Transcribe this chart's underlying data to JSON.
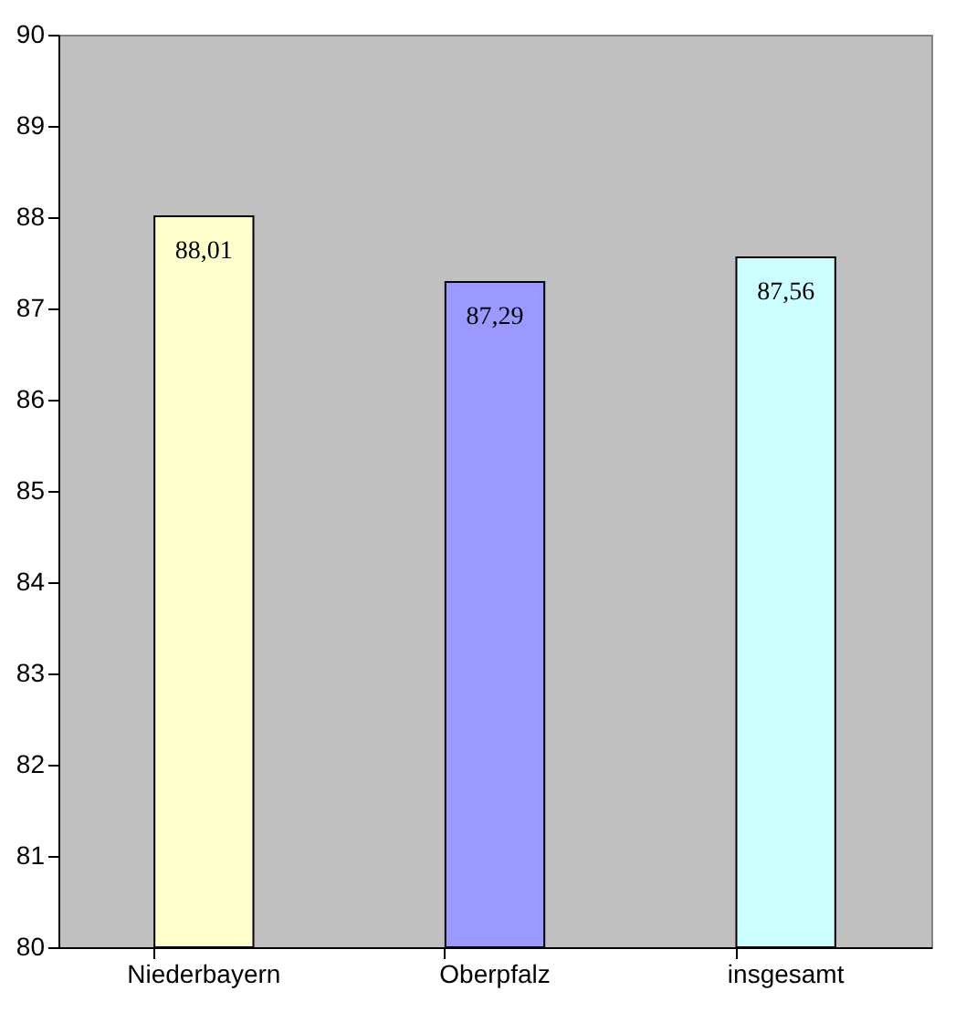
{
  "chart_data": {
    "type": "bar",
    "categories": [
      "Niederbayern",
      "Oberpfalz",
      "insgesamt"
    ],
    "values": [
      88.01,
      87.29,
      87.56
    ],
    "colors": [
      "#ffffcc",
      "#9999ff",
      "#ccffff"
    ],
    "value_labels": [
      "88,01",
      "87,29",
      "87,56"
    ],
    "ylim": [
      80,
      90
    ],
    "yticks": [
      80,
      81,
      82,
      83,
      84,
      85,
      86,
      87,
      88,
      89,
      90
    ]
  }
}
